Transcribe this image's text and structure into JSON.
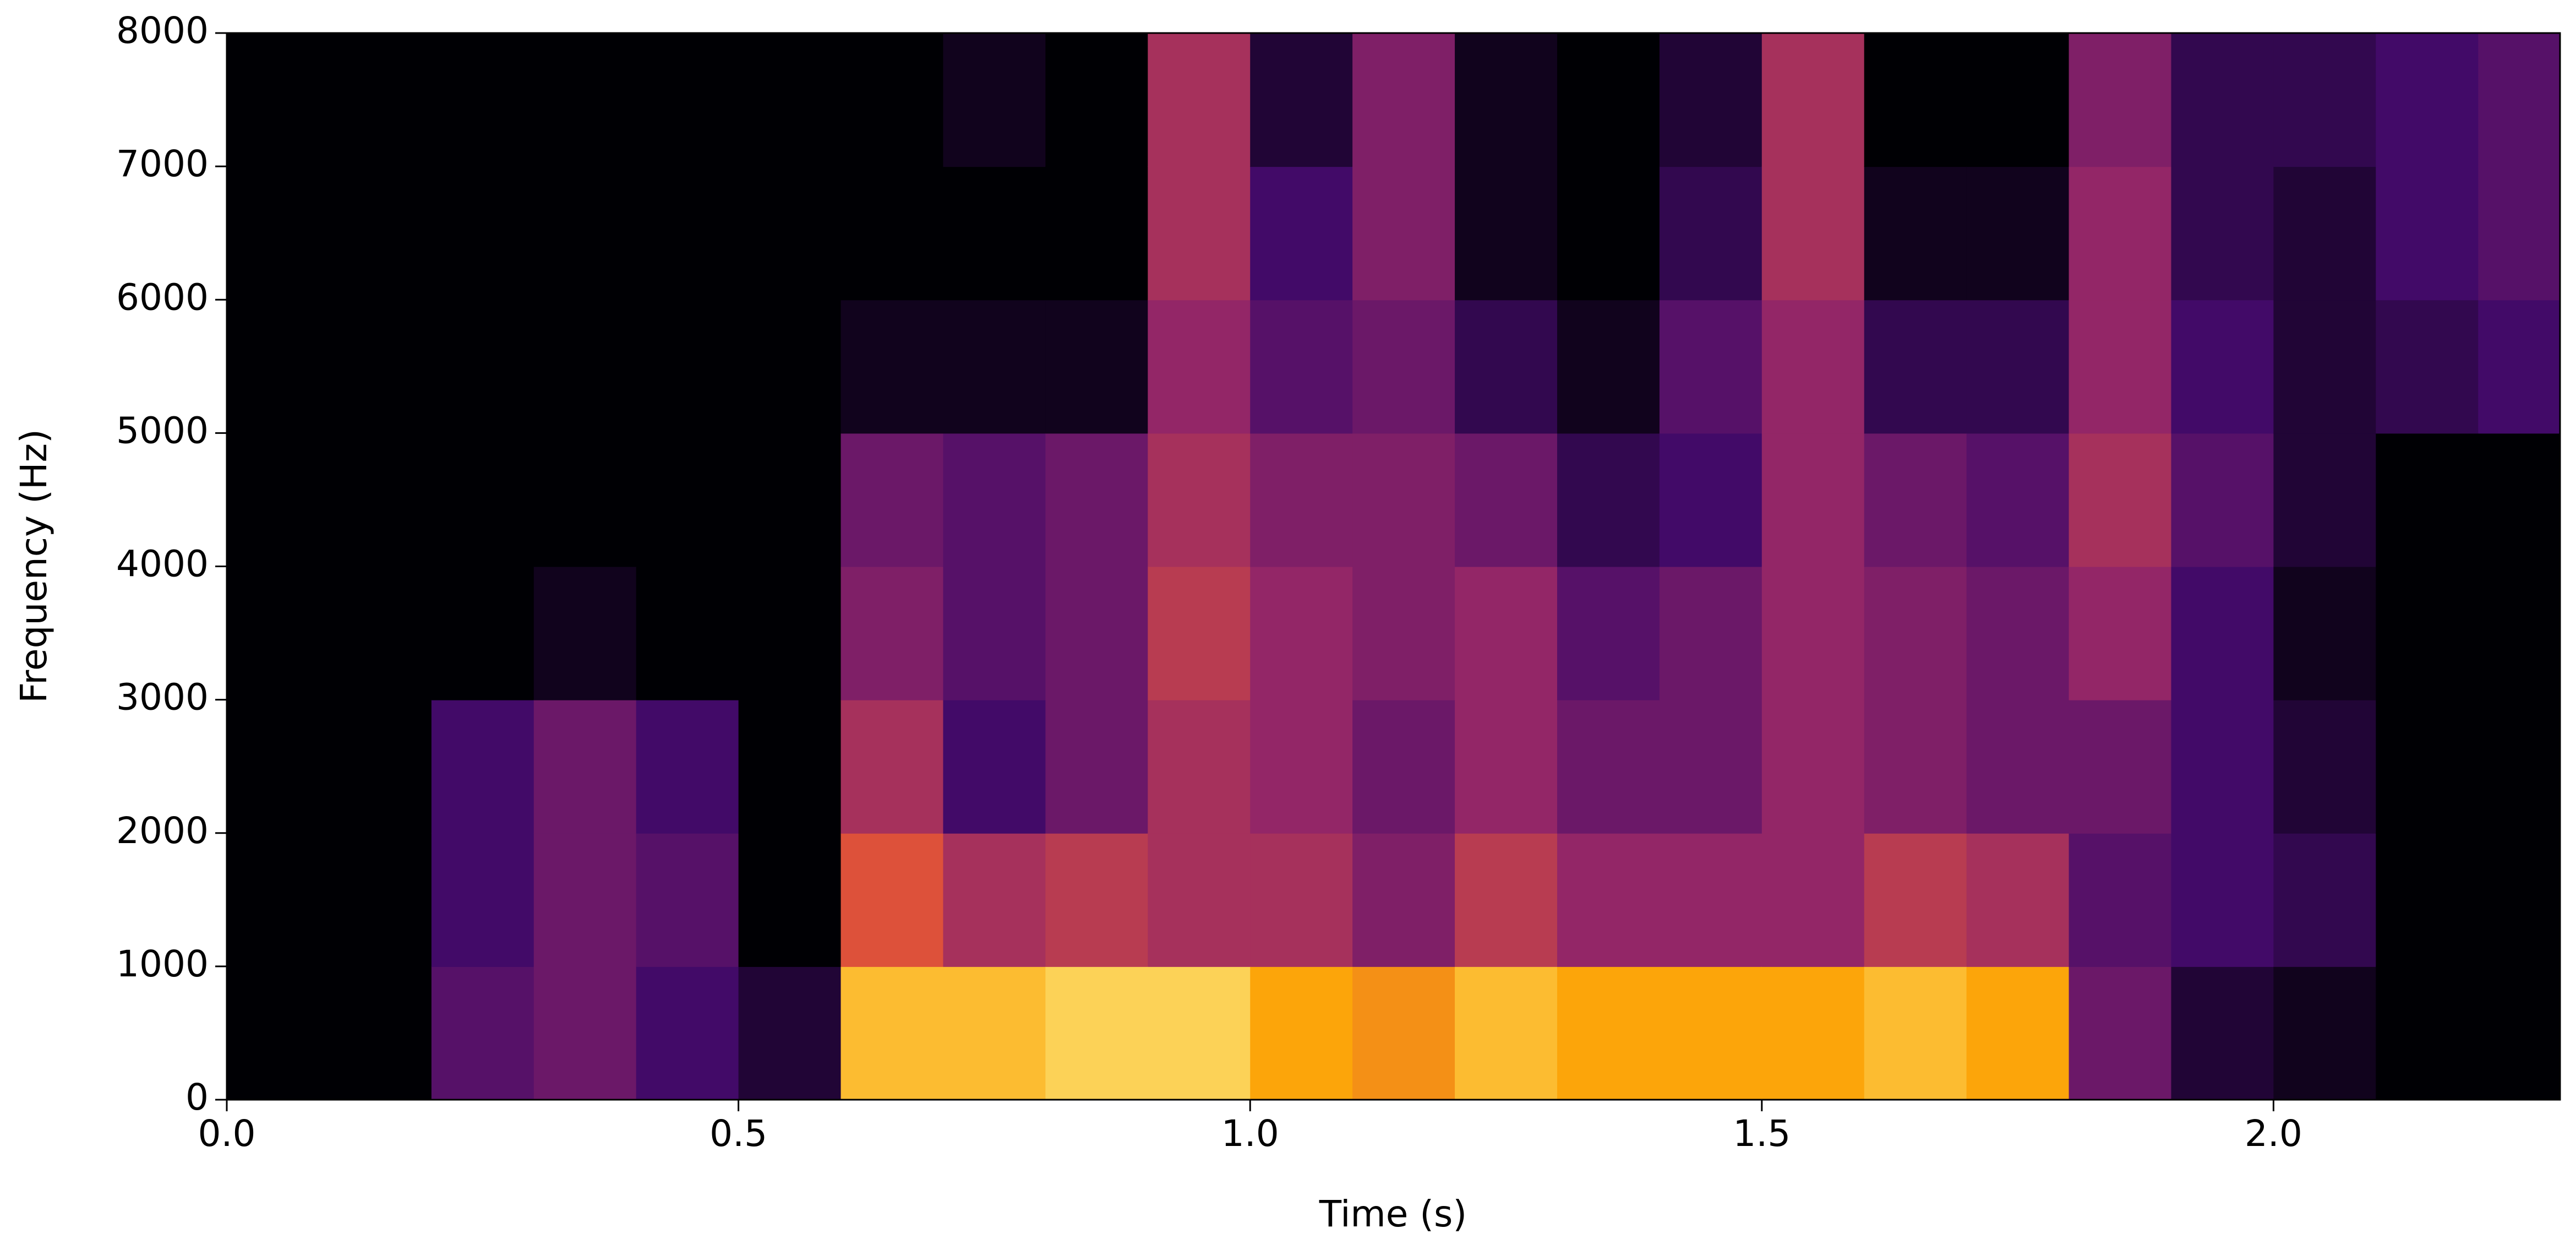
{
  "chart_data": {
    "type": "spectrogram",
    "xlabel": "Time (s)",
    "ylabel": "Frequency (Hz)",
    "xlim": [
      0,
      2.28
    ],
    "ylim": [
      0,
      8000
    ],
    "xticks": [
      {
        "value": 0,
        "label": "0.0"
      },
      0.5,
      {
        "value": 1,
        "label": "1.0"
      },
      1.5,
      {
        "value": 2,
        "label": "2.0"
      }
    ],
    "yticks": [
      0,
      1000,
      2000,
      3000,
      4000,
      5000,
      6000,
      7000,
      8000
    ],
    "colormap": [
      "#000004",
      "#420a68",
      "#932667",
      "#dd513a",
      "#fca50a",
      "#fcffa4"
    ],
    "x": [
      0.05,
      0.15,
      0.25,
      0.35,
      0.45,
      0.55,
      0.65,
      0.75,
      0.85,
      0.95,
      1.05,
      1.15,
      1.25,
      1.35,
      1.45,
      1.55,
      1.65,
      1.75,
      1.85,
      1.95,
      2.05,
      2.15,
      2.25
    ],
    "y": [
      500,
      1500,
      2500,
      3500,
      4500,
      5500,
      6500,
      7500
    ],
    "values": [
      [
        0,
        0,
        0,
        0,
        0,
        0,
        0,
        0
      ],
      [
        0,
        0,
        0,
        0,
        0,
        0,
        0,
        0
      ],
      [
        0.25,
        0.2,
        0.2,
        0,
        0,
        0,
        0,
        0
      ],
      [
        0.3,
        0.3,
        0.3,
        0.05,
        0,
        0,
        0,
        0
      ],
      [
        0.2,
        0.25,
        0.2,
        0,
        0,
        0,
        0,
        0
      ],
      [
        0.1,
        0,
        0,
        0,
        0,
        0,
        0,
        0
      ],
      [
        0.85,
        0.6,
        0.45,
        0.35,
        0.3,
        0.05,
        0,
        0
      ],
      [
        0.85,
        0.45,
        0.2,
        0.25,
        0.25,
        0.05,
        0,
        0.05
      ],
      [
        0.9,
        0.5,
        0.3,
        0.3,
        0.3,
        0.05,
        0,
        0
      ],
      [
        0.9,
        0.45,
        0.45,
        0.5,
        0.45,
        0.4,
        0.45,
        0.45
      ],
      [
        0.8,
        0.45,
        0.4,
        0.4,
        0.35,
        0.25,
        0.2,
        0.1
      ],
      [
        0.75,
        0.35,
        0.3,
        0.35,
        0.35,
        0.3,
        0.35,
        0.35
      ],
      [
        0.85,
        0.5,
        0.4,
        0.4,
        0.3,
        0.15,
        0.05,
        0.05
      ],
      [
        0.8,
        0.4,
        0.3,
        0.25,
        0.15,
        0.05,
        0,
        0
      ],
      [
        0.8,
        0.4,
        0.3,
        0.3,
        0.2,
        0.25,
        0.15,
        0.1
      ],
      [
        0.8,
        0.4,
        0.4,
        0.4,
        0.4,
        0.4,
        0.45,
        0.45
      ],
      [
        0.85,
        0.5,
        0.35,
        0.35,
        0.3,
        0.15,
        0.05,
        0
      ],
      [
        0.8,
        0.45,
        0.3,
        0.3,
        0.25,
        0.15,
        0.05,
        0
      ],
      [
        0.3,
        0.25,
        0.3,
        0.4,
        0.45,
        0.4,
        0.4,
        0.35
      ],
      [
        0.1,
        0.2,
        0.2,
        0.2,
        0.25,
        0.2,
        0.15,
        0.15
      ],
      [
        0.05,
        0.15,
        0.1,
        0.05,
        0.1,
        0.1,
        0.1,
        0.15
      ],
      [
        0,
        0,
        0,
        0,
        0,
        0.15,
        0.2,
        0.2
      ],
      [
        0,
        0,
        0,
        0,
        0,
        0.2,
        0.25,
        0.25
      ]
    ]
  }
}
